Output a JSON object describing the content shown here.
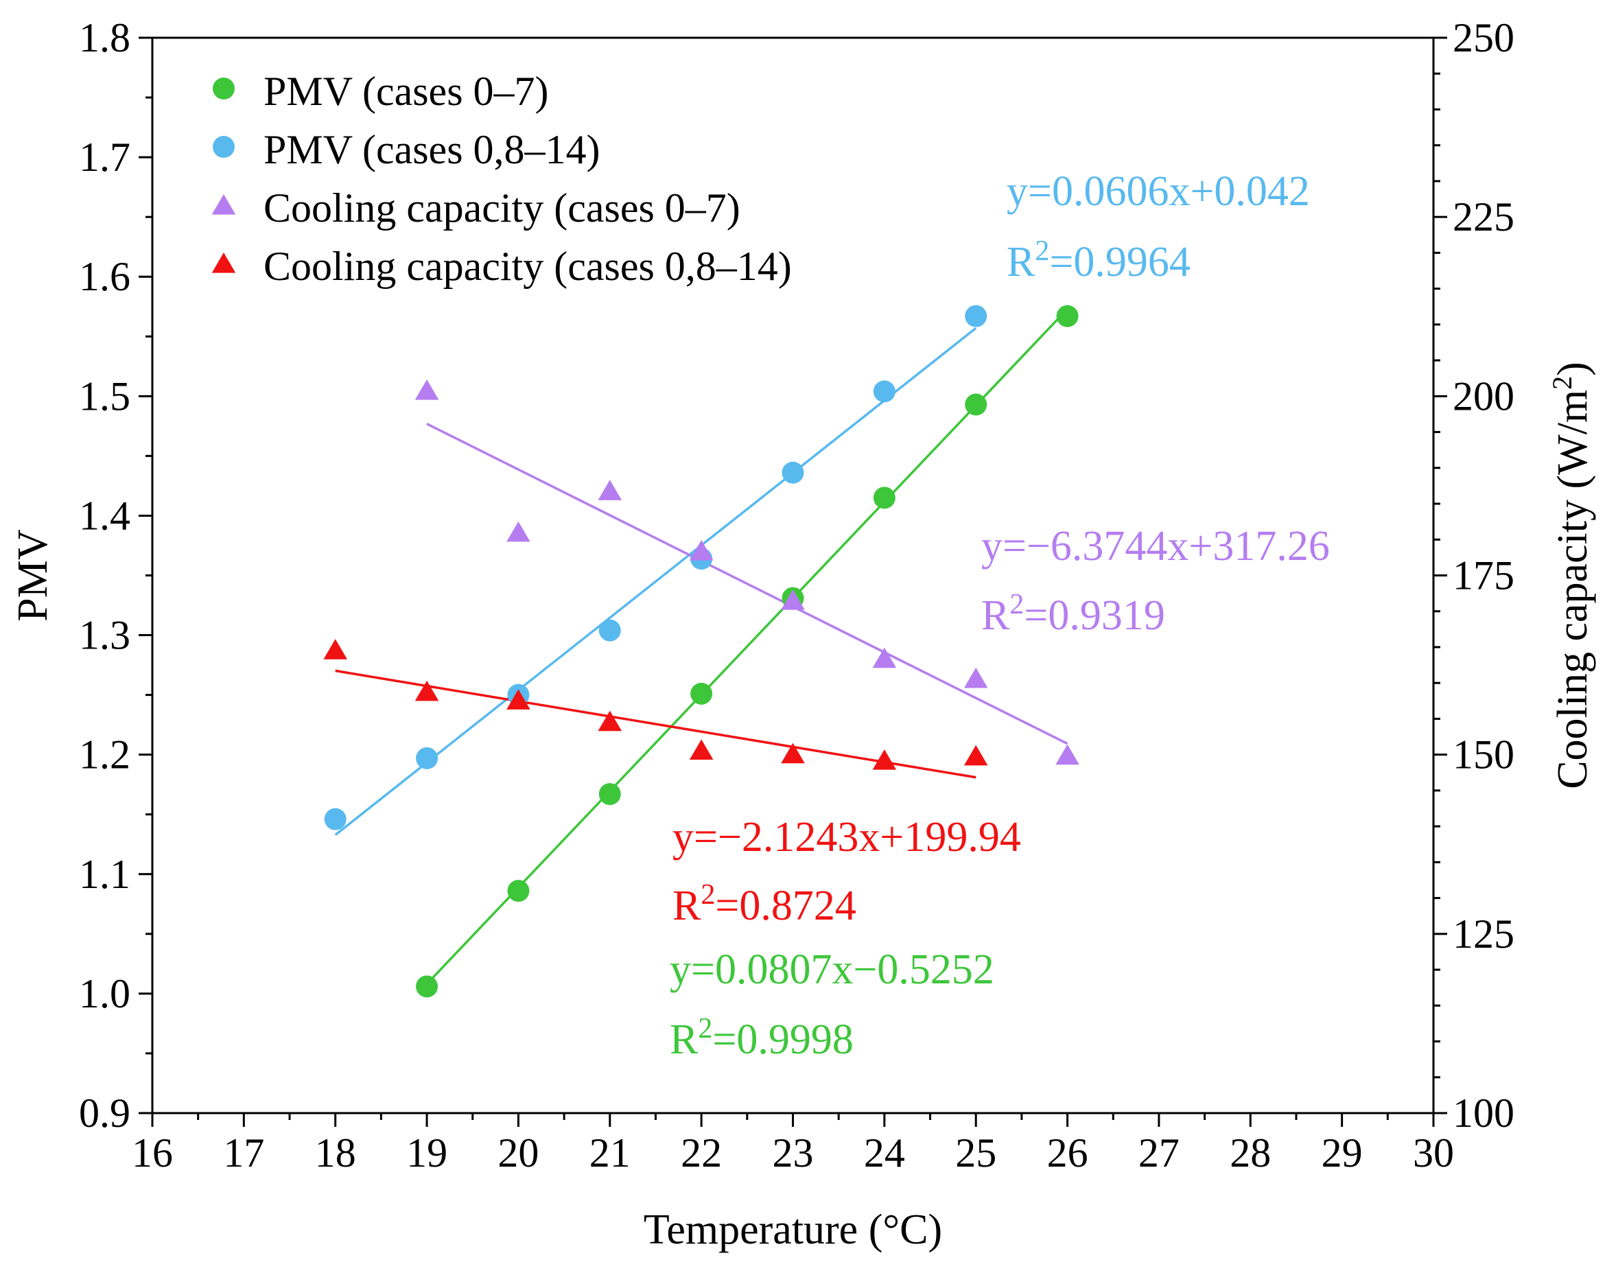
{
  "chart_data": {
    "type": "scatter",
    "xlabel": "Temperature (°C)",
    "ylabel": "PMV",
    "y2label_main": "Cooling capacity (W/m",
    "y2label_sup": "2",
    "y2label_close": ")",
    "xlim": [
      16,
      30
    ],
    "ylim": [
      0.9,
      1.8
    ],
    "y2lim": [
      100,
      250
    ],
    "xticks": [
      16,
      17,
      18,
      19,
      20,
      21,
      22,
      23,
      24,
      25,
      26,
      27,
      28,
      29,
      30
    ],
    "yticks": [
      "0.9",
      "1.0",
      "1.1",
      "1.2",
      "1.3",
      "1.4",
      "1.5",
      "1.6",
      "1.7",
      "1.8"
    ],
    "y2ticks": [
      "100",
      "125",
      "150",
      "175",
      "200",
      "225",
      "250"
    ],
    "grid": false,
    "legend_position": "top-left",
    "series": [
      {
        "name": "PMV (cases 0–7)",
        "axis": "left",
        "marker": "circle",
        "color": "#3ec63b",
        "x": [
          19,
          20,
          21,
          22,
          23,
          24,
          25,
          26
        ],
        "y": [
          1.006,
          1.086,
          1.167,
          1.251,
          1.331,
          1.415,
          1.493,
          1.567
        ],
        "fit": {
          "slope": 0.0807,
          "intercept": -0.5252,
          "x_range": [
            19,
            26
          ],
          "eq": "y=0.0807x−0.5252",
          "r2_prefix": "R",
          "r2_sup": "2",
          "r2_value": "=0.9998"
        }
      },
      {
        "name": "PMV (cases 0,8–14)",
        "axis": "left",
        "marker": "circle",
        "color": "#58b9ef",
        "x": [
          18,
          19,
          20,
          21,
          22,
          23,
          24,
          25
        ],
        "y": [
          1.146,
          1.197,
          1.25,
          1.304,
          1.364,
          1.436,
          1.504,
          1.567
        ],
        "fit": {
          "slope": 0.0606,
          "intercept": 0.042,
          "x_range": [
            18,
            25
          ],
          "eq": "y=0.0606x+0.042",
          "r2_prefix": "R",
          "r2_sup": "2",
          "r2_value": "=0.9964"
        }
      },
      {
        "name": "Cooling capacity (cases 0–7)",
        "axis": "right",
        "marker": "triangle",
        "color": "#b57df0",
        "x": [
          19,
          20,
          21,
          22,
          23,
          24,
          25,
          26
        ],
        "y": [
          200.8,
          181.0,
          186.8,
          178.4,
          171.5,
          163.4,
          160.6,
          149.9
        ],
        "fit": {
          "slope": -6.3744,
          "intercept": 317.26,
          "x_range": [
            19,
            26
          ],
          "eq": "y=−6.3744x+317.26",
          "r2_prefix": "R",
          "r2_sup": "2",
          "r2_value": "=0.9319"
        }
      },
      {
        "name": "Cooling capacity (cases 0,8–14)",
        "axis": "right",
        "marker": "triangle",
        "color": "#f01212",
        "x": [
          18,
          19,
          20,
          21,
          22,
          23,
          24,
          25
        ],
        "y": [
          164.6,
          158.8,
          157.6,
          154.6,
          150.6,
          150.1,
          149.2,
          149.8
        ],
        "fit": {
          "slope": -2.1243,
          "intercept": 199.94,
          "x_range": [
            18,
            25
          ],
          "eq": "y=−2.1243x+199.94",
          "r2_prefix": "R",
          "r2_sup": "2",
          "r2_value": "=0.8724"
        }
      }
    ]
  }
}
